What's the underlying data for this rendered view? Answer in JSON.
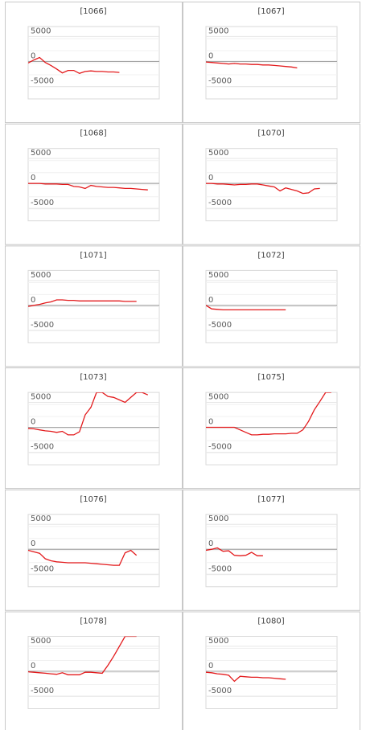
{
  "chart_data": [
    {
      "type": "line",
      "title": "[1066]",
      "ylim": [
        -7500,
        7000
      ],
      "yticks": [
        5000,
        0,
        -5000
      ],
      "grid": true,
      "color": "#e31a1c",
      "values": [
        -300,
        300,
        800,
        -200,
        -800,
        -1500,
        -2300,
        -1800,
        -1800,
        -2400,
        -2000,
        -1900,
        -2000,
        -2000,
        -2100,
        -2100,
        -2200
      ]
    },
    {
      "type": "line",
      "title": "[1067]",
      "ylim": [
        -7500,
        7000
      ],
      "yticks": [
        5000,
        0,
        -5000
      ],
      "grid": true,
      "color": "#e31a1c",
      "values": [
        -100,
        -200,
        -300,
        -400,
        -500,
        -400,
        -500,
        -500,
        -600,
        -600,
        -700,
        -700,
        -800,
        -900,
        -1000,
        -1100,
        -1300
      ]
    },
    {
      "type": "line",
      "title": "[1068]",
      "ylim": [
        -7500,
        7000
      ],
      "yticks": [
        5000,
        0,
        -5000
      ],
      "grid": true,
      "color": "#e31a1c",
      "values": [
        0,
        0,
        0,
        -100,
        -100,
        -100,
        -200,
        -200,
        -600,
        -700,
        -1000,
        -400,
        -600,
        -700,
        -800,
        -800,
        -900,
        -1000,
        -1000,
        -1100,
        -1200,
        -1300
      ]
    },
    {
      "type": "line",
      "title": "[1070]",
      "ylim": [
        -7500,
        7000
      ],
      "yticks": [
        5000,
        0,
        -5000
      ],
      "grid": true,
      "color": "#e31a1c",
      "values": [
        0,
        0,
        -100,
        -100,
        -200,
        -300,
        -200,
        -200,
        -100,
        -100,
        -300,
        -500,
        -700,
        -1500,
        -900,
        -1200,
        -1500,
        -2000,
        -1900,
        -1100,
        -1000
      ]
    },
    {
      "type": "line",
      "title": "[1071]",
      "ylim": [
        -7500,
        7000
      ],
      "yticks": [
        5000,
        0,
        -5000
      ],
      "grid": true,
      "color": "#e31a1c",
      "values": [
        -200,
        0,
        200,
        500,
        700,
        1100,
        1100,
        1000,
        1000,
        900,
        900,
        900,
        900,
        900,
        900,
        900,
        900,
        800,
        800,
        800
      ]
    },
    {
      "type": "line",
      "title": "[1072]",
      "ylim": [
        -7500,
        7000
      ],
      "yticks": [
        5000,
        0,
        -5000
      ],
      "grid": true,
      "color": "#e31a1c",
      "values": [
        0,
        -700,
        -800,
        -900,
        -900,
        -900,
        -900,
        -900,
        -900,
        -900,
        -900,
        -900,
        -900,
        -900,
        -900
      ]
    },
    {
      "type": "line",
      "title": "[1073]",
      "ylim": [
        -7500,
        7000
      ],
      "yticks": [
        5000,
        0,
        -5000
      ],
      "grid": true,
      "color": "#e31a1c",
      "values": [
        -200,
        -300,
        -500,
        -700,
        -800,
        -1000,
        -800,
        -1500,
        -1500,
        -900,
        2500,
        4000,
        7000,
        7000,
        6200,
        6000,
        5500,
        5000,
        6000,
        7000,
        7000,
        6500
      ]
    },
    {
      "type": "line",
      "title": "[1075]",
      "ylim": [
        -7500,
        7000
      ],
      "yticks": [
        5000,
        0,
        -5000
      ],
      "grid": true,
      "color": "#e31a1c",
      "values": [
        0,
        0,
        0,
        0,
        0,
        0,
        -500,
        -1000,
        -1500,
        -1500,
        -1400,
        -1400,
        -1300,
        -1300,
        -1300,
        -1200,
        -1200,
        -500,
        1200,
        3500,
        5200,
        7000,
        7000
      ]
    },
    {
      "type": "line",
      "title": "[1076]",
      "ylim": [
        -7500,
        7000
      ],
      "yticks": [
        5000,
        0,
        -5000
      ],
      "grid": true,
      "color": "#e31a1c",
      "values": [
        -200,
        -500,
        -800,
        -1900,
        -2300,
        -2500,
        -2600,
        -2700,
        -2700,
        -2700,
        -2700,
        -2800,
        -2900,
        -3000,
        -3100,
        -3200,
        -3200,
        -700,
        -200,
        -1200
      ]
    },
    {
      "type": "line",
      "title": "[1077]",
      "ylim": [
        -7500,
        7000
      ],
      "yticks": [
        5000,
        0,
        -5000
      ],
      "grid": true,
      "color": "#e31a1c",
      "values": [
        -200,
        0,
        300,
        -400,
        -300,
        -1200,
        -1300,
        -1200,
        -600,
        -1300,
        -1300
      ]
    },
    {
      "type": "line",
      "title": "[1078]",
      "ylim": [
        -7500,
        7000
      ],
      "yticks": [
        5000,
        0,
        -5000
      ],
      "grid": true,
      "color": "#e31a1c",
      "values": [
        -100,
        -200,
        -300,
        -400,
        -500,
        -600,
        -300,
        -700,
        -700,
        -700,
        -200,
        -200,
        -300,
        -400,
        1200,
        3000,
        5000,
        7000,
        7000,
        7000
      ]
    },
    {
      "type": "line",
      "title": "[1080]",
      "ylim": [
        -7500,
        7000
      ],
      "yticks": [
        5000,
        0,
        -5000
      ],
      "grid": true,
      "color": "#e31a1c",
      "values": [
        -200,
        -300,
        -500,
        -600,
        -800,
        -2000,
        -1000,
        -1100,
        -1200,
        -1200,
        -1300,
        -1300,
        -1400,
        -1500,
        -1600
      ]
    }
  ]
}
